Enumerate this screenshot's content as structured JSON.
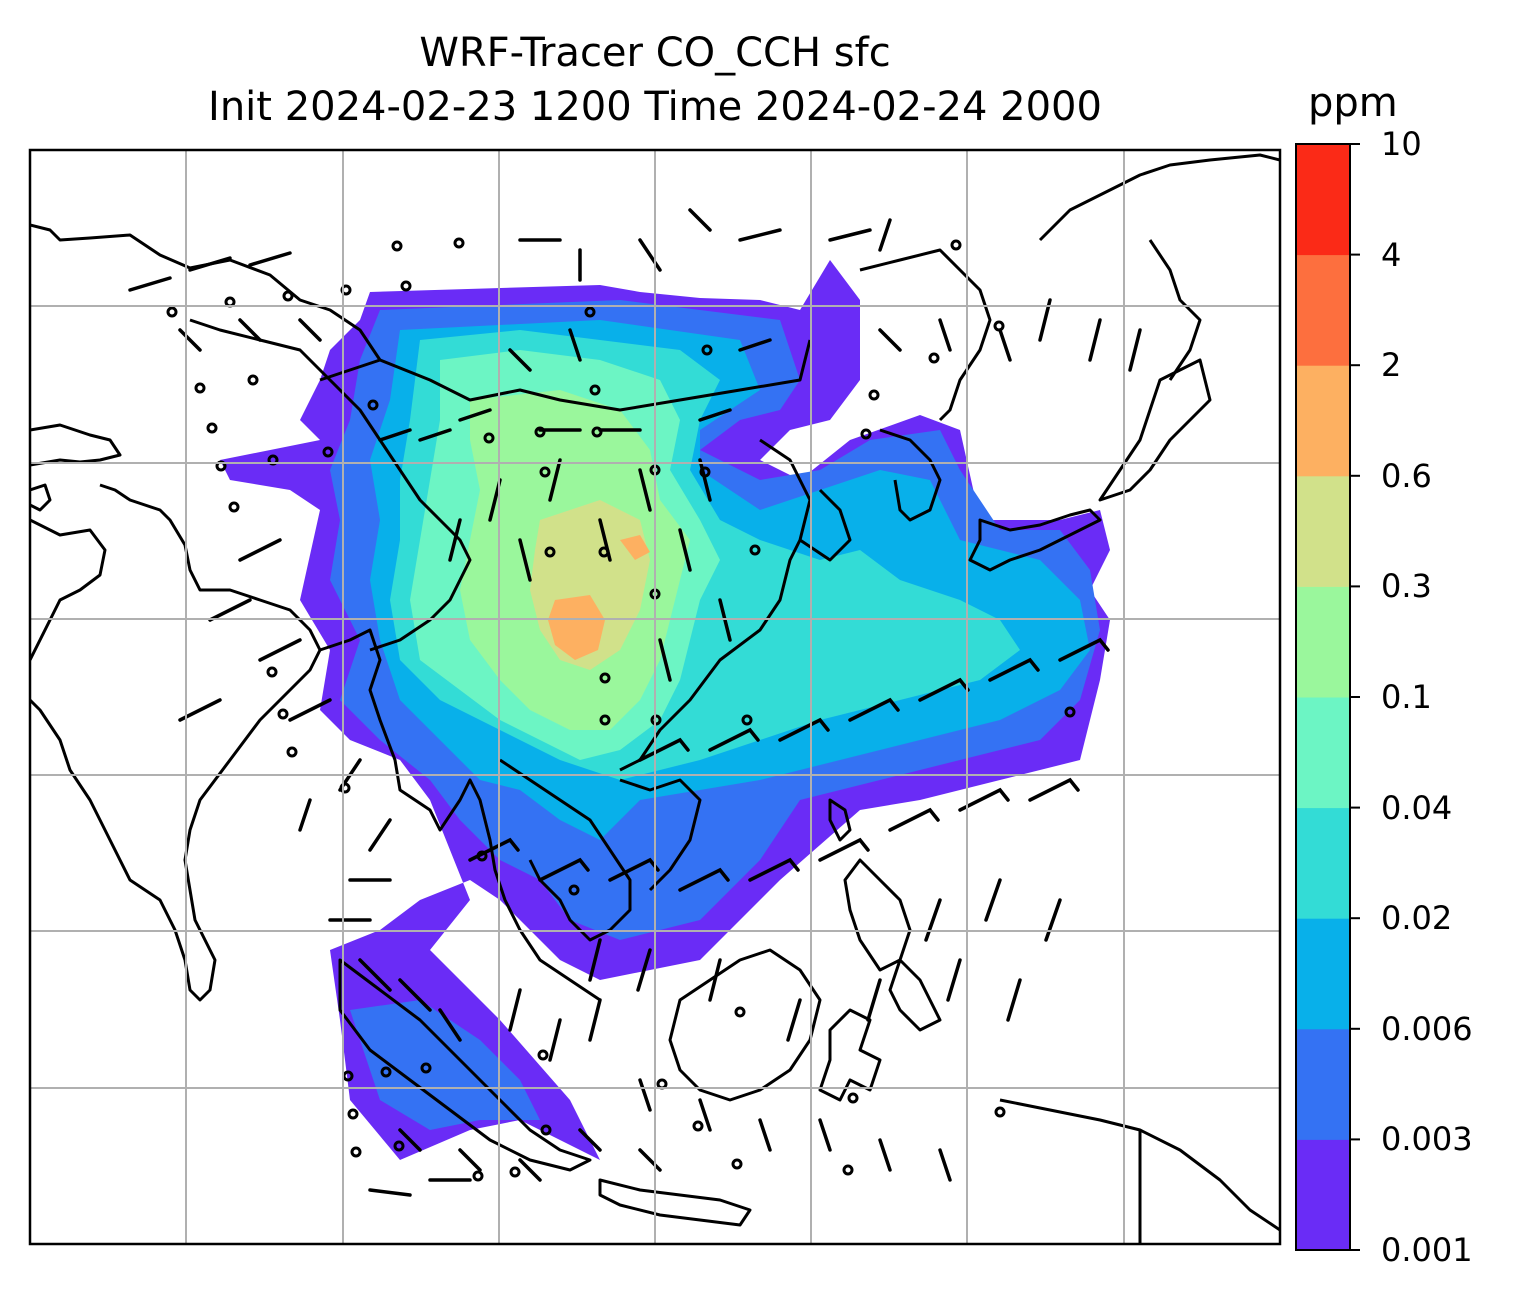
{
  "title": {
    "line1": "WRF-Tracer CO_CCH sfc",
    "line2": "Init 2024-02-23 1200 Time 2024-02-24 2000"
  },
  "colorbar": {
    "unit": "ppm",
    "levels": [
      "0.001",
      "0.003",
      "0.006",
      "0.02",
      "0.04",
      "0.1",
      "0.3",
      "0.6",
      "2",
      "4",
      "10"
    ],
    "colors": [
      "#6a2cf6",
      "#3472f3",
      "#08b0ea",
      "#33dcd6",
      "#6cf5c4",
      "#9af79c",
      "#d1e18a",
      "#fdb061",
      "#fd6f3e",
      "#fb2a17"
    ]
  },
  "map": {
    "graticule_color": "#b0b0b0",
    "coastline_color": "#000000",
    "land_color": "#ffffff"
  }
}
